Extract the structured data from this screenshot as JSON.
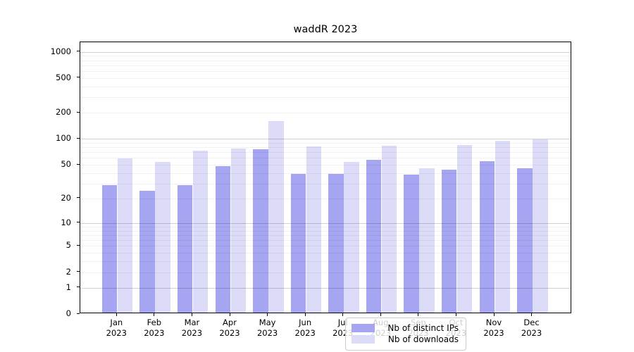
{
  "title": "waddR 2023",
  "chart_data": {
    "type": "bar",
    "title": "waddR 2023",
    "categories": [
      "Jan 2023",
      "Feb 2023",
      "Mar 2023",
      "Apr 2023",
      "May 2023",
      "Jun 2023",
      "Jul 2023",
      "Aug 2023",
      "Sep 2023",
      "Oct 2023",
      "Nov 2023",
      "Dec 2023"
    ],
    "series": [
      {
        "name": "Nb of distinct IPs",
        "color": "#a5a5f2",
        "values": [
          28,
          24,
          28,
          46,
          73,
          38,
          38,
          55,
          37,
          42,
          53,
          44
        ]
      },
      {
        "name": "Nb of downloads",
        "color": "#dcdcf8",
        "values": [
          57,
          52,
          70,
          75,
          155,
          79,
          52,
          80,
          44,
          82,
          92,
          95
        ]
      }
    ],
    "xlabel": "",
    "ylabel": "",
    "yscale": "log10(value+1), 0 at baseline",
    "yticks": [
      0,
      1,
      2,
      5,
      10,
      20,
      50,
      100,
      200,
      500,
      1000
    ],
    "ylim": [
      0,
      1290
    ],
    "grid": "horizontal, log minor + major decade lines",
    "legend_position": "lower center inside plot"
  }
}
